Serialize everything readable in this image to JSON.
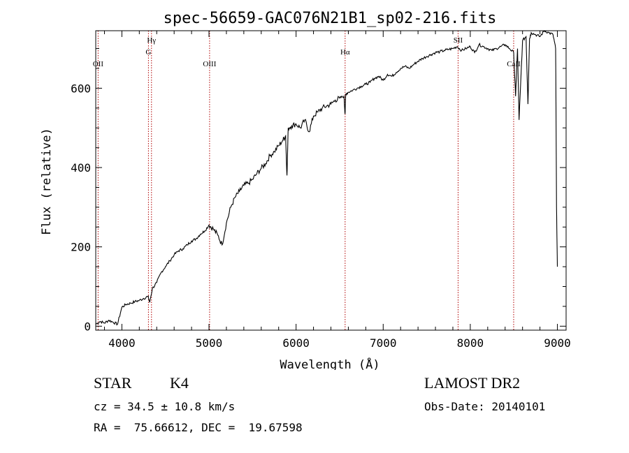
{
  "chart_data": {
    "type": "line",
    "title": "spec-56659-GAC076N21B1_sp02-216.fits",
    "xlabel": "Wavelength (Å)",
    "ylabel": "Flux (relative)",
    "xlim": [
      3700,
      9100
    ],
    "ylim": [
      -10,
      745
    ],
    "x_ticks": [
      4000,
      5000,
      6000,
      7000,
      8000,
      9000
    ],
    "x_tick_labels": [
      "4000",
      "5000",
      "6000",
      "7000",
      "8000",
      "9000"
    ],
    "y_ticks": [
      0,
      200,
      400,
      600
    ],
    "y_tick_labels": [
      "0",
      "200",
      "400",
      "600"
    ],
    "lines": [
      {
        "label": "OII",
        "x": 3727,
        "label_level": 1
      },
      {
        "label": "Hγ",
        "x": 4340,
        "label_level": 3
      },
      {
        "label": "G",
        "x": 4305,
        "label_level": 2
      },
      {
        "label": "OIII",
        "x": 5007,
        "label_level": 1
      },
      {
        "label": "Hα",
        "x": 6563,
        "label_level": 2
      },
      {
        "label": "SII",
        "x": 7860,
        "label_level": 3
      },
      {
        "label": "CaII",
        "x": 8498,
        "label_level": 1
      }
    ],
    "series": [
      {
        "name": "flux",
        "x": [
          3700,
          3750,
          3800,
          3850,
          3900,
          3950,
          4000,
          4050,
          4100,
          4150,
          4200,
          4250,
          4300,
          4320,
          4350,
          4400,
          4450,
          4500,
          4550,
          4600,
          4650,
          4700,
          4750,
          4800,
          4850,
          4900,
          4950,
          5000,
          5050,
          5100,
          5150,
          5200,
          5250,
          5300,
          5350,
          5400,
          5450,
          5500,
          5550,
          5600,
          5650,
          5700,
          5750,
          5800,
          5850,
          5880,
          5895,
          5910,
          5950,
          6000,
          6050,
          6100,
          6150,
          6200,
          6250,
          6300,
          6350,
          6400,
          6450,
          6500,
          6550,
          6562,
          6570,
          6600,
          6650,
          6700,
          6750,
          6800,
          6850,
          6900,
          6950,
          7000,
          7050,
          7100,
          7150,
          7200,
          7250,
          7300,
          7350,
          7400,
          7450,
          7500,
          7550,
          7600,
          7650,
          7700,
          7750,
          7800,
          7850,
          7900,
          7950,
          8000,
          8050,
          8100,
          8150,
          8200,
          8250,
          8300,
          8350,
          8400,
          8450,
          8498,
          8520,
          8542,
          8560,
          8600,
          8640,
          8662,
          8680,
          8700,
          8750,
          8800,
          8850,
          8900,
          8950,
          8980,
          8990,
          9000
        ],
        "y": [
          5,
          12,
          8,
          15,
          10,
          5,
          48,
          55,
          58,
          62,
          65,
          70,
          75,
          60,
          95,
          110,
          135,
          150,
          165,
          180,
          190,
          195,
          205,
          215,
          220,
          232,
          240,
          255,
          245,
          230,
          205,
          260,
          300,
          325,
          340,
          355,
          360,
          370,
          385,
          398,
          410,
          430,
          440,
          455,
          470,
          480,
          380,
          500,
          505,
          510,
          500,
          520,
          490,
          530,
          540,
          550,
          555,
          560,
          570,
          575,
          580,
          535,
          585,
          590,
          595,
          600,
          605,
          610,
          615,
          625,
          630,
          620,
          635,
          630,
          640,
          650,
          655,
          650,
          660,
          668,
          675,
          680,
          685,
          690,
          692,
          695,
          698,
          700,
          705,
          695,
          700,
          705,
          690,
          710,
          705,
          700,
          695,
          700,
          705,
          710,
          700,
          690,
          580,
          700,
          520,
          720,
          730,
          560,
          725,
          740,
          735,
          730,
          745,
          740,
          735,
          700,
          300,
          150
        ]
      }
    ]
  },
  "info": {
    "object_class": "STAR",
    "subclass": "K4",
    "survey": "LAMOST DR2",
    "redshift_line": "cz = 34.5 ± 10.8 km/s",
    "obs_date": "Obs-Date: 20140101",
    "coords": "RA =  75.66612, DEC =  19.67598"
  }
}
